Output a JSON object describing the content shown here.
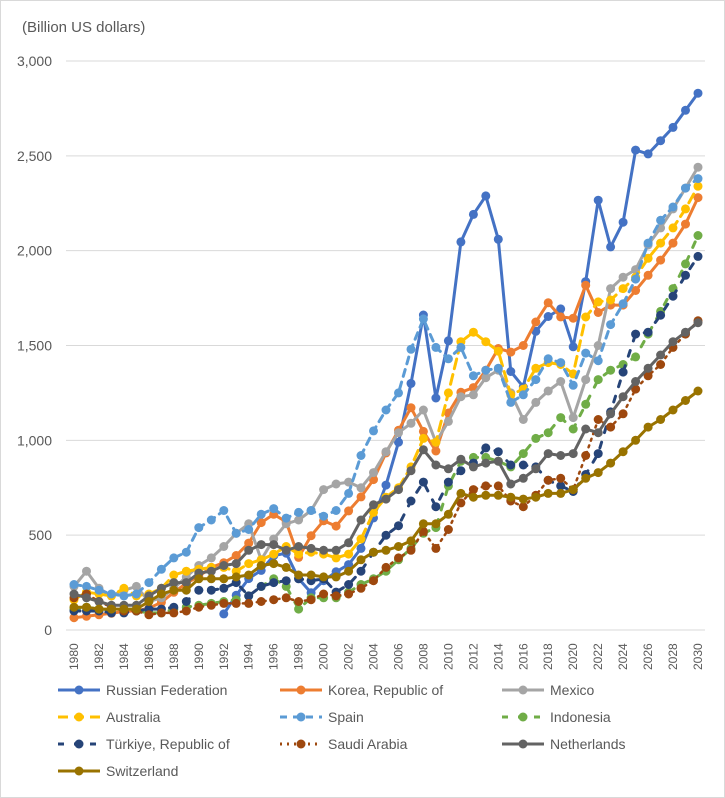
{
  "chart_data": {
    "type": "line",
    "title": "",
    "unit_label": "(Billion US dollars)",
    "xlabel": "",
    "ylabel": "Billion US dollars",
    "ylim": [
      0,
      3000
    ],
    "yticks": [
      0,
      500,
      1000,
      1500,
      2000,
      2500,
      3000
    ],
    "ytick_labels": [
      "0",
      "500",
      "1,000",
      "1,500",
      "2,000",
      "2,500",
      "3,000"
    ],
    "x": [
      1980,
      1981,
      1982,
      1983,
      1984,
      1985,
      1986,
      1987,
      1988,
      1989,
      1990,
      1991,
      1992,
      1993,
      1994,
      1995,
      1996,
      1997,
      1998,
      1999,
      2000,
      2001,
      2002,
      2003,
      2004,
      2005,
      2006,
      2007,
      2008,
      2009,
      2010,
      2011,
      2012,
      2013,
      2014,
      2015,
      2016,
      2017,
      2018,
      2019,
      2020,
      2021,
      2022,
      2023,
      2024,
      2025,
      2026,
      2027,
      2028,
      2029,
      2030
    ],
    "xtick_labels": [
      "1980",
      "1982",
      "1984",
      "1986",
      "1988",
      "1990",
      "1992",
      "1994",
      "1996",
      "1998",
      "2000",
      "2002",
      "2004",
      "2006",
      "2008",
      "2010",
      "2012",
      "2014",
      "2016",
      "2018",
      "2020",
      "2022",
      "2024",
      "2026",
      "2028",
      "2030"
    ],
    "grid": true,
    "legend_position": "bottom",
    "series": [
      {
        "name": "Russian Federation",
        "color": "#4472c4",
        "dash": "solid",
        "values": [
          null,
          null,
          null,
          null,
          null,
          null,
          null,
          null,
          null,
          null,
          null,
          null,
          85,
          183,
          271,
          314,
          392,
          405,
          271,
          196,
          260,
          307,
          345,
          430,
          591,
          764,
          990,
          1300,
          1661,
          1223,
          1525,
          2046,
          2191,
          2289,
          2060,
          1363,
          1281,
          1575,
          1653,
          1693,
          1493,
          1837,
          2266,
          2020,
          2150,
          2530,
          2510,
          2580,
          2650,
          2740,
          2830
        ]
      },
      {
        "name": "Korea, Republic of",
        "color": "#ed7d31",
        "dash": "solid",
        "values": [
          65,
          72,
          80,
          88,
          98,
          102,
          115,
          146,
          199,
          246,
          283,
          330,
          355,
          393,
          458,
          566,
          610,
          570,
          383,
          497,
          576,
          548,
          628,
          702,
          793,
          934,
          1053,
          1172,
          1047,
          944,
          1144,
          1253,
          1278,
          1370,
          1484,
          1465,
          1500,
          1624,
          1725,
          1651,
          1644,
          1818,
          1674,
          1713,
          1713,
          1790,
          1870,
          1950,
          2040,
          2140,
          2280
        ]
      },
      {
        "name": "Mexico",
        "color": "#a5a5a5",
        "dash": "solid",
        "values": [
          230,
          310,
          220,
          180,
          210,
          230,
          150,
          170,
          220,
          280,
          340,
          380,
          440,
          510,
          560,
          370,
          480,
          560,
          580,
          630,
          740,
          770,
          780,
          750,
          830,
          940,
          1040,
          1090,
          1160,
          990,
          1100,
          1230,
          1240,
          1330,
          1370,
          1250,
          1110,
          1200,
          1260,
          1310,
          1120,
          1320,
          1500,
          1800,
          1860,
          1900,
          2030,
          2120,
          2220,
          2330,
          2440
        ]
      },
      {
        "name": "Australia",
        "color": "#ffc000",
        "dash": "longdash",
        "values": [
          160,
          200,
          190,
          180,
          220,
          180,
          190,
          220,
          290,
          310,
          320,
          330,
          330,
          310,
          350,
          370,
          400,
          440,
          400,
          410,
          400,
          380,
          400,
          480,
          620,
          700,
          750,
          860,
          1010,
          990,
          1250,
          1520,
          1570,
          1520,
          1470,
          1240,
          1270,
          1380,
          1410,
          1400,
          1350,
          1650,
          1730,
          1740,
          1800,
          1860,
          1960,
          2040,
          2120,
          2220,
          2340
        ]
      },
      {
        "name": "Spain",
        "color": "#5b9bd5",
        "dash": "dash",
        "values": [
          240,
          230,
          210,
          190,
          180,
          190,
          250,
          320,
          380,
          410,
          540,
          580,
          630,
          510,
          530,
          610,
          640,
          590,
          620,
          630,
          600,
          630,
          720,
          920,
          1050,
          1160,
          1250,
          1480,
          1640,
          1490,
          1430,
          1490,
          1340,
          1370,
          1380,
          1200,
          1240,
          1320,
          1430,
          1410,
          1290,
          1460,
          1420,
          1610,
          1720,
          1850,
          2040,
          2160,
          2230,
          2330,
          2380
        ]
      },
      {
        "name": "Indonesia",
        "color": "#70ad47",
        "dash": "sparse",
        "values": [
          110,
          120,
          110,
          100,
          100,
          100,
          90,
          90,
          110,
          120,
          130,
          140,
          150,
          160,
          180,
          230,
          270,
          230,
          110,
          170,
          170,
          170,
          200,
          240,
          270,
          310,
          370,
          430,
          510,
          540,
          760,
          890,
          910,
          910,
          890,
          860,
          930,
          1010,
          1040,
          1120,
          1060,
          1190,
          1320,
          1370,
          1400,
          1440,
          1560,
          1680,
          1800,
          1930,
          2080
        ]
      },
      {
        "name": "Türkiye, Republic of",
        "color": "#264478",
        "dash": "sparse",
        "values": [
          100,
          100,
          100,
          90,
          90,
          100,
          110,
          110,
          120,
          150,
          210,
          210,
          220,
          250,
          180,
          230,
          250,
          260,
          270,
          260,
          270,
          200,
          240,
          310,
          410,
          500,
          550,
          680,
          780,
          650,
          780,
          840,
          880,
          960,
          940,
          870,
          870,
          860,
          790,
          760,
          730,
          820,
          930,
          1150,
          1360,
          1560,
          1570,
          1660,
          1760,
          1870,
          1970
        ]
      },
      {
        "name": "Saudi Arabia",
        "color": "#9e480e",
        "dash": "dot",
        "values": [
          170,
          190,
          150,
          120,
          100,
          100,
          80,
          90,
          90,
          100,
          120,
          130,
          140,
          140,
          140,
          150,
          160,
          170,
          150,
          160,
          190,
          180,
          190,
          220,
          260,
          330,
          380,
          420,
          520,
          430,
          530,
          670,
          740,
          760,
          760,
          680,
          650,
          710,
          790,
          800,
          740,
          920,
          1110,
          1070,
          1140,
          1270,
          1340,
          1400,
          1490,
          1560,
          1630
        ]
      },
      {
        "name": "Netherlands",
        "color": "#636363",
        "dash": "solid",
        "values": [
          190,
          170,
          150,
          130,
          130,
          130,
          180,
          220,
          250,
          250,
          300,
          310,
          340,
          350,
          420,
          450,
          450,
          420,
          440,
          430,
          420,
          420,
          460,
          580,
          660,
          690,
          740,
          840,
          950,
          870,
          850,
          900,
          860,
          880,
          890,
          770,
          800,
          850,
          930,
          920,
          930,
          1060,
          1040,
          1140,
          1230,
          1310,
          1380,
          1450,
          1520,
          1570,
          1620
        ]
      },
      {
        "name": "Switzerland",
        "color": "#997300",
        "dash": "solid",
        "values": [
          120,
          120,
          110,
          110,
          110,
          110,
          150,
          190,
          210,
          210,
          270,
          270,
          270,
          280,
          290,
          340,
          350,
          330,
          290,
          290,
          280,
          280,
          310,
          370,
          410,
          420,
          440,
          470,
          560,
          560,
          610,
          720,
          700,
          710,
          710,
          700,
          690,
          700,
          720,
          720,
          740,
          800,
          830,
          880,
          940,
          1000,
          1070,
          1110,
          1160,
          1210,
          1260
        ]
      }
    ]
  }
}
